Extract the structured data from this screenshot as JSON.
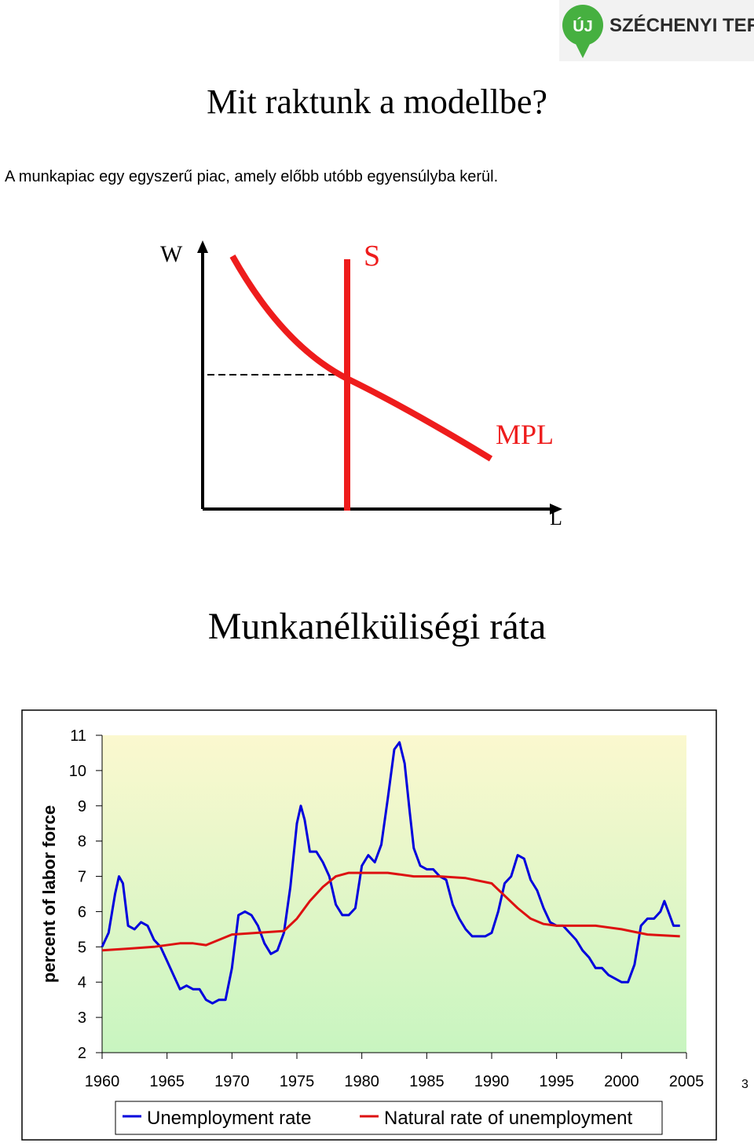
{
  "logo": {
    "badge": "ÚJ",
    "text": "SZÉCHENYI TERV",
    "colors": {
      "green": "#46b040",
      "dark": "#2b2b2b"
    }
  },
  "title": "Mit raktunk a modellbe?",
  "subtitle": "A munkapiac egy egyszerű piac, amely előbb utóbb egyensúlyba kerül.",
  "diagram": {
    "y_axis_label": "W",
    "x_axis_label": "L",
    "supply_label": "S",
    "demand_label": "MPL",
    "curve_color": "#ee1c1c"
  },
  "section_title": "Munkanélküliségi ráta",
  "page_number": "3",
  "chart_data": {
    "type": "line",
    "title": "",
    "xlabel": "",
    "ylabel": "percent of labor force",
    "xlim": [
      1960,
      2005
    ],
    "ylim": [
      2,
      11
    ],
    "x_ticks": [
      1960,
      1965,
      1970,
      1975,
      1980,
      1985,
      1990,
      1995,
      2000,
      2005
    ],
    "y_ticks": [
      2,
      3,
      4,
      5,
      6,
      7,
      8,
      9,
      10,
      11
    ],
    "grid": false,
    "plot_background": "gradient light yellow to light green",
    "legend_position": "bottom",
    "series": [
      {
        "name": "Unemployment rate",
        "color": "#0000dd",
        "x": [
          1960.0,
          1960.5,
          1961.0,
          1961.3,
          1961.6,
          1962.0,
          1962.5,
          1963.0,
          1963.5,
          1964.0,
          1964.5,
          1965.0,
          1965.5,
          1966.0,
          1966.5,
          1967.0,
          1967.5,
          1968.0,
          1968.5,
          1969.0,
          1969.5,
          1970.0,
          1970.5,
          1971.0,
          1971.5,
          1972.0,
          1972.5,
          1973.0,
          1973.5,
          1974.0,
          1974.5,
          1975.0,
          1975.3,
          1975.6,
          1976.0,
          1976.5,
          1977.0,
          1977.5,
          1978.0,
          1978.5,
          1979.0,
          1979.5,
          1980.0,
          1980.5,
          1981.0,
          1981.5,
          1982.0,
          1982.5,
          1982.9,
          1983.3,
          1983.7,
          1984.0,
          1984.5,
          1985.0,
          1985.5,
          1986.0,
          1986.5,
          1987.0,
          1987.5,
          1988.0,
          1988.5,
          1989.0,
          1989.5,
          1990.0,
          1990.5,
          1991.0,
          1991.5,
          1992.0,
          1992.5,
          1993.0,
          1993.5,
          1994.0,
          1994.5,
          1995.0,
          1995.5,
          1996.0,
          1996.5,
          1997.0,
          1997.5,
          1998.0,
          1998.5,
          1999.0,
          1999.5,
          2000.0,
          2000.5,
          2001.0,
          2001.5,
          2002.0,
          2002.5,
          2003.0,
          2003.3,
          2003.6,
          2004.0,
          2004.5
        ],
        "y": [
          5.0,
          5.4,
          6.5,
          7.0,
          6.8,
          5.6,
          5.5,
          5.7,
          5.6,
          5.2,
          5.0,
          4.6,
          4.2,
          3.8,
          3.9,
          3.8,
          3.8,
          3.5,
          3.4,
          3.5,
          3.5,
          4.4,
          5.9,
          6.0,
          5.9,
          5.6,
          5.1,
          4.8,
          4.9,
          5.4,
          6.7,
          8.5,
          9.0,
          8.6,
          7.7,
          7.7,
          7.4,
          7.0,
          6.2,
          5.9,
          5.9,
          6.1,
          7.3,
          7.6,
          7.4,
          7.9,
          9.2,
          10.6,
          10.8,
          10.2,
          8.8,
          7.8,
          7.3,
          7.2,
          7.2,
          7.0,
          6.9,
          6.2,
          5.8,
          5.5,
          5.3,
          5.3,
          5.3,
          5.4,
          6.0,
          6.8,
          7.0,
          7.6,
          7.5,
          6.9,
          6.6,
          6.1,
          5.7,
          5.6,
          5.6,
          5.4,
          5.2,
          4.9,
          4.7,
          4.4,
          4.4,
          4.2,
          4.1,
          4.0,
          4.0,
          4.5,
          5.6,
          5.8,
          5.8,
          6.0,
          6.3,
          6.0,
          5.6,
          5.6
        ]
      },
      {
        "name": "Natural rate of unemployment",
        "color": "#dd1111",
        "x": [
          1960,
          1962,
          1964,
          1966,
          1967,
          1968,
          1970,
          1972,
          1974,
          1975,
          1976,
          1977,
          1978,
          1979,
          1980,
          1982,
          1984,
          1986,
          1988,
          1990,
          1992,
          1993,
          1994,
          1995,
          1998,
          2000,
          2002,
          2004.5
        ],
        "y": [
          4.9,
          4.95,
          5.0,
          5.1,
          5.1,
          5.05,
          5.35,
          5.4,
          5.45,
          5.8,
          6.3,
          6.7,
          7.0,
          7.1,
          7.1,
          7.1,
          7.0,
          7.0,
          6.95,
          6.8,
          6.1,
          5.8,
          5.65,
          5.6,
          5.6,
          5.5,
          5.35,
          5.3
        ]
      }
    ]
  }
}
